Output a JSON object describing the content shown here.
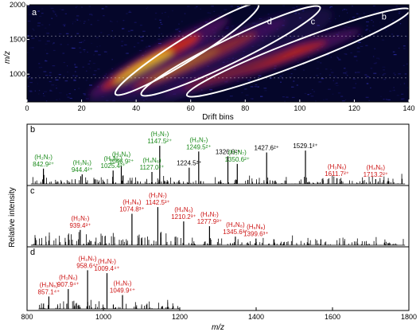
{
  "colors": {
    "green": "#1a8a1a",
    "red": "#cc1111",
    "heat_bg": "#05062a"
  },
  "chart_data": [
    {
      "type": "heatmap",
      "panel_label": "a",
      "xlabel": "Drift bins",
      "ylabel": "m/z",
      "xlim": [
        0,
        140
      ],
      "ylim": [
        600,
        2000
      ],
      "xticks": [
        "0",
        "20",
        "40",
        "60",
        "80",
        "100",
        "120",
        "140"
      ],
      "yticks": [
        "1000",
        "1500",
        "2000"
      ],
      "grid": false,
      "family_labels": [
        "d",
        "c",
        "b"
      ],
      "families": [
        {
          "name": "d",
          "center": [
            58,
            1130
          ],
          "label_at": [
            88,
            1720
          ]
        },
        {
          "name": "c",
          "center": [
            77,
            1240
          ],
          "label_at": [
            104,
            1720
          ]
        },
        {
          "name": "b",
          "center": [
            100,
            1310
          ],
          "label_at": [
            130,
            1790
          ]
        }
      ]
    },
    {
      "type": "bar",
      "stacked_panels": true,
      "xlabel": "m/z",
      "ylabel": "Relative intensity",
      "xlim": [
        800,
        1800
      ],
      "xticks": [
        "800",
        "1000",
        "1200",
        "1400",
        "1600",
        "1800"
      ],
      "panels": [
        {
          "label": "b",
          "major_peaks": [
            [
              842.9,
              0.32
            ],
            [
              944.4,
              0.2
            ],
            [
              1025.4,
              0.28
            ],
            [
              1046.9,
              0.38
            ],
            [
              1127.0,
              0.25
            ],
            [
              1147.5,
              0.8
            ],
            [
              1224.5,
              0.34
            ],
            [
              1249.5,
              0.68
            ],
            [
              1326.0,
              0.58
            ],
            [
              1350.6,
              0.42
            ],
            [
              1427.6,
              0.66
            ],
            [
              1529.1,
              0.7
            ],
            [
              1611.7,
              0.12
            ],
            [
              1713.2,
              0.1
            ]
          ],
          "annotations": [
            {
              "species": "(H₂N₇)",
              "mz": "842.9²⁺",
              "color": "green"
            },
            {
              "species": "(H₃N₅)",
              "mz": "944.4²⁺",
              "color": "green"
            },
            {
              "species": "(H₄N₅)",
              "mz": "1025.4²⁺",
              "color": "green"
            },
            {
              "species": "(H₃N₆)",
              "mz": "1046.9²⁺",
              "color": "green"
            },
            {
              "species": "(H₄N₆)",
              "mz": "1127.0²⁺",
              "color": "green"
            },
            {
              "species": "(H₃N₇)",
              "mz": "1147.5²⁺",
              "color": "green"
            },
            {
              "species": "",
              "mz": "1224.5²⁺",
              "color": "black"
            },
            {
              "species": "(H₄N₇)",
              "mz": "1249.5²⁺",
              "color": "green"
            },
            {
              "species": "",
              "mz": "1326.0²⁺",
              "color": "black"
            },
            {
              "species": "(H₃N₇)",
              "mz": "1350.6²⁺",
              "color": "green"
            },
            {
              "species": "",
              "mz": "1427.6²⁺",
              "color": "black"
            },
            {
              "species": "",
              "mz": "1529.1²⁺",
              "color": "black"
            },
            {
              "species": "(H₃N₆)",
              "mz": "1611.7²⁺",
              "color": "red"
            },
            {
              "species": "(H₄N₆)",
              "mz": "1713.2²⁺",
              "color": "red"
            }
          ]
        },
        {
          "label": "c",
          "major_peaks": [
            [
              939.4,
              0.32
            ],
            [
              1074.8,
              0.66
            ],
            [
              1142.5,
              0.8
            ],
            [
              1210.2,
              0.5
            ],
            [
              1277.9,
              0.4
            ],
            [
              1345.6,
              0.18
            ],
            [
              1399.6,
              0.14
            ]
          ],
          "annotations": [
            {
              "species": "(H₂N₇)",
              "mz": "939.4³⁺",
              "color": "red"
            },
            {
              "species": "(H₃N₆)",
              "mz": "1074.8³⁺",
              "color": "red"
            },
            {
              "species": "(H₃N₇)",
              "mz": "1142.5³⁺",
              "color": "red"
            },
            {
              "species": "(H₄N₆)",
              "mz": "1210.2³⁺",
              "color": "red"
            },
            {
              "species": "(H₄N₇)",
              "mz": "1277.9³⁺",
              "color": "red"
            },
            {
              "species": "(H₄N₈)",
              "mz": "1345.6³⁺",
              "color": "red"
            },
            {
              "species": "(H₅N₈)",
              "mz": "1399.6³⁺",
              "color": "red"
            }
          ]
        },
        {
          "label": "d",
          "major_peaks": [
            [
              857.1,
              0.25
            ],
            [
              907.9,
              0.4
            ],
            [
              958.6,
              0.78
            ],
            [
              1009.4,
              0.72
            ],
            [
              1049.9,
              0.28
            ]
          ],
          "annotations": [
            {
              "species": "(H₃N₅)",
              "mz": "857.1⁴⁺",
              "color": "red"
            },
            {
              "species": "(H₃N₆)",
              "mz": "907.9⁴⁺",
              "color": "red"
            },
            {
              "species": "(H₃N₇)",
              "mz": "958.6⁴⁺",
              "color": "red"
            },
            {
              "species": "(H₄N₇)",
              "mz": "1009.4⁴⁺",
              "color": "red"
            },
            {
              "species": "(H₄N₇)",
              "mz": "1049.9⁴⁺",
              "color": "red"
            }
          ]
        }
      ]
    }
  ]
}
